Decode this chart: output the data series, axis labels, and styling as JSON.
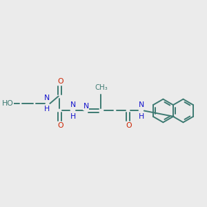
{
  "bg_color": "#ebebeb",
  "bond_color": "#3d7a72",
  "oxygen_color": "#cc2200",
  "nitrogen_color": "#1515cc",
  "line_width": 1.4,
  "font_size": 7.8,
  "fig_size": [
    3.0,
    3.0
  ],
  "dpi": 100,
  "xlim": [
    0,
    10
  ],
  "ylim": [
    2,
    8
  ]
}
